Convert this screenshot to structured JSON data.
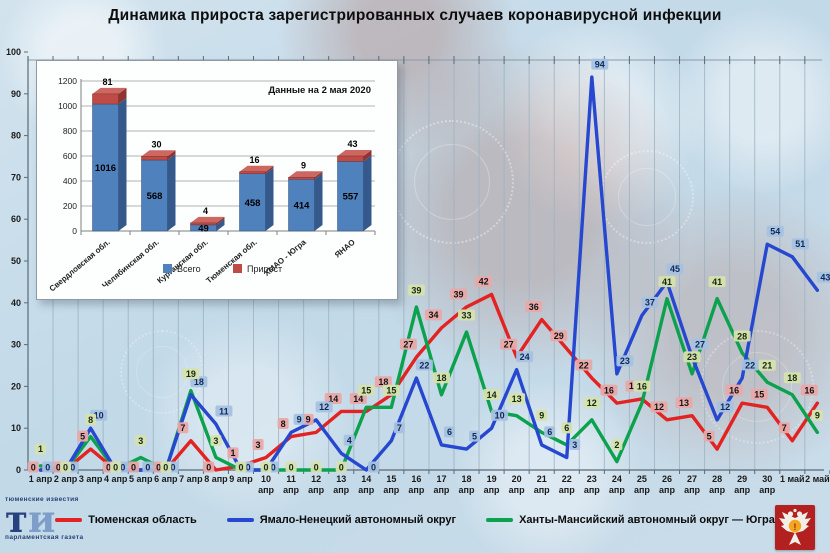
{
  "title": "Динамика прироста зарегистрированных случаев коронавирусной инфекции",
  "inset": {
    "title": "Данные на 2 мая 2020",
    "type": "bar3d-stacked",
    "categories": [
      "Свердловская обл.",
      "Челябинская обл.",
      "Курганская обл.",
      "Тюменская обл.",
      "ХМАО - Югра",
      "ЯНАО"
    ],
    "series": [
      {
        "name": "Всего",
        "color": "#4f81bd",
        "side": "#36598c",
        "top": "#6d94c4",
        "values": [
          1016,
          568,
          49,
          458,
          414,
          557
        ]
      },
      {
        "name": "Прирост",
        "color": "#bf4b47",
        "side": "#8e3532",
        "top": "#cd6762",
        "values": [
          81,
          30,
          4,
          16,
          9,
          43
        ]
      }
    ],
    "ylim": [
      0,
      1200
    ],
    "yticks": [
      0,
      200,
      400,
      600,
      800,
      1000,
      1200
    ]
  },
  "chart_data": {
    "type": "line",
    "x_labels": [
      "1 апр",
      "2 апр",
      "3 апр",
      "4 апр",
      "5 апр",
      "6 апр",
      "7 апр",
      "8 апр",
      "9 апр",
      "10 апр",
      "11 апр",
      "12 апр",
      "13 апр",
      "14 апр",
      "15 апр",
      "16 апр",
      "17 апр",
      "18 апр",
      "19 апр",
      "20 апр",
      "21 апр",
      "22 апр",
      "23 апр",
      "24 апр",
      "25 апр",
      "26 апр",
      "27 апр",
      "28 апр",
      "29 апр",
      "30 апр",
      "1 май",
      "2 май"
    ],
    "ylim": [
      0,
      100
    ],
    "yticks": [
      0,
      10,
      20,
      30,
      40,
      50,
      60,
      70,
      80,
      90,
      100
    ],
    "grid": "vertical",
    "legend_position": "bottom",
    "series": [
      {
        "name": "Тюменская область",
        "color": "#e32222",
        "label_bg": "#e9a8a8",
        "label_fg": "#151515",
        "values": [
          0,
          0,
          5,
          0,
          0,
          0,
          7,
          0,
          1,
          3,
          8,
          9,
          14,
          14,
          18,
          27,
          34,
          39,
          42,
          27,
          36,
          29,
          22,
          16,
          17,
          12,
          13,
          5,
          16,
          15,
          7,
          16
        ]
      },
      {
        "name": "Ямало-Ненецкий автономный округ",
        "color": "#2647cf",
        "label_bg": "#a6c1e2",
        "label_fg": "#0f2a58",
        "values": [
          0,
          0,
          10,
          0,
          0,
          0,
          18,
          11,
          0,
          0,
          9,
          12,
          4,
          0,
          7,
          22,
          6,
          5,
          10,
          24,
          6,
          3,
          94,
          23,
          37,
          45,
          27,
          12,
          22,
          54,
          51,
          43
        ]
      },
      {
        "name": "Ханты-Мансийский автономный округ — Югра",
        "color": "#0ba14d",
        "label_bg": "#d6e2ad",
        "label_fg": "#152a10",
        "values": [
          1,
          0,
          8,
          0,
          3,
          0,
          19,
          3,
          0,
          0,
          0,
          0,
          0,
          15,
          15,
          39,
          18,
          33,
          14,
          13,
          9,
          6,
          12,
          2,
          16,
          41,
          23,
          41,
          28,
          21,
          18,
          9
        ]
      }
    ]
  },
  "logo": {
    "top": "тюменские известия",
    "big1": "т",
    "big2": "и",
    "bottom": "парламентская газета"
  },
  "emblem": {
    "mark": "!"
  }
}
